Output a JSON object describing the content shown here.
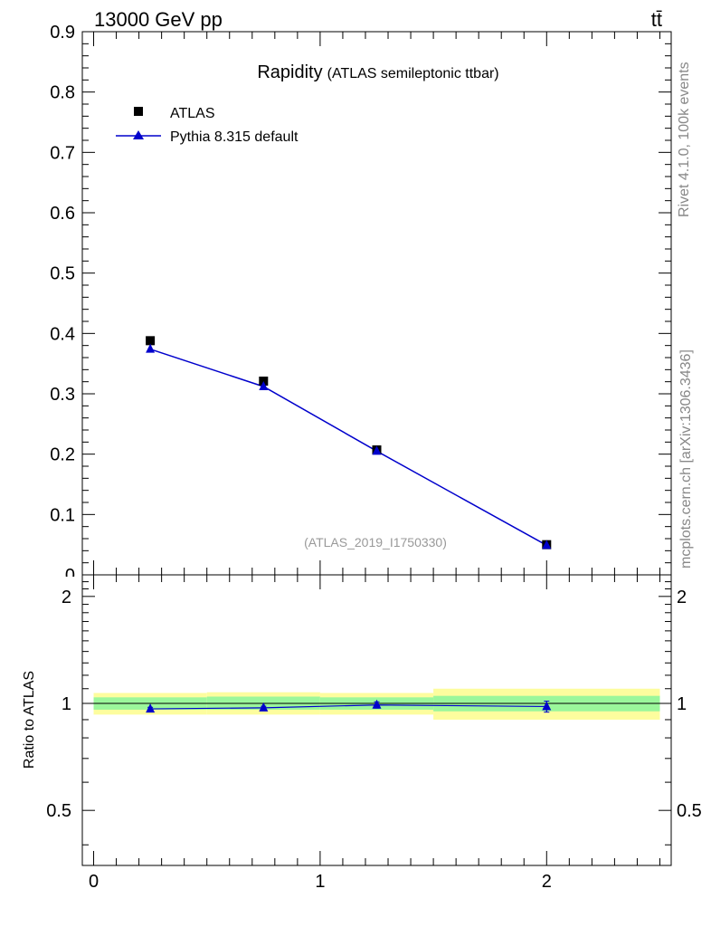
{
  "header": {
    "energy_label": "13000 GeV pp",
    "process_label": "tt̄"
  },
  "side": {
    "rivet_label": "Rivet 4.1.0,  100k events",
    "mcplots_label": "mcplots.cern.ch [arXiv:1306.3436]"
  },
  "chart_data": [
    {
      "type": "scatter",
      "panel": "main",
      "title": "Rapidity",
      "subtitle": "(ATLAS semileptonic ttbar)",
      "watermark": "(ATLAS_2019_I1750330)",
      "xlim": [
        -0.05,
        2.55
      ],
      "ylim": [
        0,
        0.9
      ],
      "yticks": [
        0.1,
        0.2,
        0.3,
        0.4,
        0.5,
        0.6,
        0.7,
        0.8,
        0.9
      ],
      "ytick_labels": [
        "0.1",
        "0.2",
        "0.3",
        "0.4",
        "0.5",
        "0.6",
        "0.7",
        "0.8",
        "0.9"
      ],
      "y_zero_label": "0",
      "legend": [
        "ATLAS",
        "Pythia 8.315 default"
      ],
      "legend_position": "top-left",
      "series": [
        {
          "name": "ATLAS",
          "marker": "square",
          "color": "#000000",
          "x": [
            0.25,
            0.75,
            1.25,
            2.0
          ],
          "y": [
            0.388,
            0.321,
            0.207,
            0.05
          ]
        },
        {
          "name": "Pythia 8.315 default",
          "marker": "triangle",
          "color": "#0000cc",
          "x": [
            0.25,
            0.75,
            1.25,
            2.0
          ],
          "y": [
            0.374,
            0.312,
            0.205,
            0.049
          ]
        }
      ]
    },
    {
      "type": "line",
      "panel": "ratio",
      "ylabel": "Ratio to ATLAS",
      "xlim": [
        -0.05,
        2.55
      ],
      "ylim": [
        0.35,
        2.3
      ],
      "xticks": [
        0,
        1,
        2
      ],
      "xtick_labels": [
        "0",
        "1",
        "2"
      ],
      "yticks": [
        0.5,
        1,
        2
      ],
      "ytick_labels": [
        "0.5",
        "1",
        "2"
      ],
      "bands": [
        {
          "x0": 0.0,
          "x1": 0.5,
          "inner": [
            0.96,
            1.04
          ],
          "outer": [
            0.93,
            1.07
          ]
        },
        {
          "x0": 0.5,
          "x1": 1.0,
          "inner": [
            0.96,
            1.045
          ],
          "outer": [
            0.93,
            1.075
          ]
        },
        {
          "x0": 1.0,
          "x1": 1.5,
          "inner": [
            0.96,
            1.04
          ],
          "outer": [
            0.93,
            1.07
          ]
        },
        {
          "x0": 1.5,
          "x1": 2.5,
          "inner": [
            0.95,
            1.05
          ],
          "outer": [
            0.9,
            1.1
          ]
        }
      ],
      "band_colors": {
        "inner": "#9bf79b",
        "outer": "#fdfd9e"
      },
      "series": [
        {
          "name": "Pythia 8.315 default",
          "color": "#0000cc",
          "x": [
            0.25,
            0.75,
            1.25,
            2.0
          ],
          "y": [
            0.965,
            0.972,
            0.99,
            0.98
          ],
          "err": [
            0.01,
            0.01,
            0.02,
            0.035
          ]
        }
      ]
    }
  ]
}
